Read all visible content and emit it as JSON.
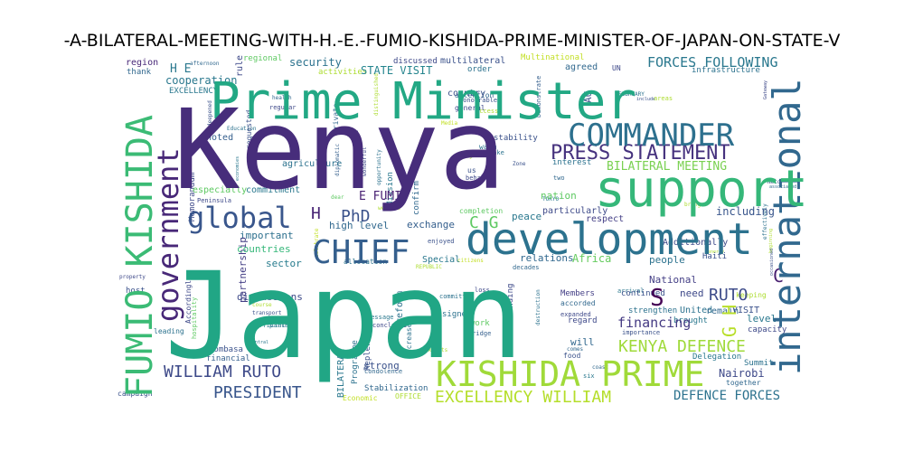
{
  "chart_data": {
    "type": "wordcloud",
    "title": "-A-BILATERAL-MEETING-WITH-H.-E.-FUMIO-KISHIDA-PRIME-MINISTER-OF-JAPAN-ON-STATE-V",
    "background": "#ffffff",
    "palette": [
      "#440154",
      "#472d7b",
      "#3b528b",
      "#2c728e",
      "#21918c",
      "#28ae80",
      "#5ec962",
      "#addc30",
      "#fde725"
    ],
    "words": [
      {
        "text": "Kenya",
        "weight": 100,
        "color": "#472d7b"
      },
      {
        "text": "Japan",
        "weight": 98,
        "color": "#21a685"
      },
      {
        "text": "Prime Minister",
        "weight": 55,
        "color": "#22a884"
      },
      {
        "text": "support",
        "weight": 50,
        "color": "#35b779"
      },
      {
        "text": "development",
        "weight": 45,
        "color": "#2c728e"
      },
      {
        "text": "international",
        "weight": 40,
        "color": "#31688e"
      },
      {
        "text": "KISHIDA PRIME",
        "weight": 40,
        "color": "#a0da39"
      },
      {
        "text": "FUMIO KISHIDA",
        "weight": 40,
        "color": "#3bbb75"
      },
      {
        "text": "COMMANDER",
        "weight": 34,
        "color": "#2d708e"
      },
      {
        "text": "government",
        "weight": 34,
        "color": "#482878"
      },
      {
        "text": "CHIEF",
        "weight": 32,
        "color": "#355f8d"
      },
      {
        "text": "global",
        "weight": 30,
        "color": "#39568c"
      },
      {
        "text": "PRESS STATEMENT",
        "weight": 22,
        "color": "#46327e"
      },
      {
        "text": "EXCELLENCY WILLIAM",
        "weight": 18,
        "color": "#b5de2b"
      },
      {
        "text": "KENYA DEFENCE",
        "weight": 18,
        "color": "#9fda3a"
      },
      {
        "text": "WILLIAM RUTO",
        "weight": 17,
        "color": "#3e4a89"
      },
      {
        "text": "PRESIDENT",
        "weight": 17,
        "color": "#39568c"
      },
      {
        "text": "FORCES FOLLOWING",
        "weight": 15,
        "color": "#2a788e"
      },
      {
        "text": "DEFENCE FORCES",
        "weight": 14,
        "color": "#2c728e"
      },
      {
        "text": "BILATERAL MEETING",
        "weight": 13,
        "color": "#7ad151"
      },
      {
        "text": "STATE VISIT",
        "weight": 12,
        "color": "#25858e"
      },
      {
        "text": "financing",
        "weight": 14,
        "color": "#443a83"
      },
      {
        "text": "RUTO",
        "weight": 16,
        "color": "#3e4c8a"
      },
      {
        "text": "PhD",
        "weight": 16,
        "color": "#3b528b"
      },
      {
        "text": "H",
        "weight": 18,
        "color": "#482475"
      },
      {
        "text": "C G",
        "weight": 16,
        "color": "#5ec962"
      },
      {
        "text": "G H",
        "weight": 18,
        "color": "#b8de29"
      },
      {
        "text": "E FUMIO",
        "weight": 12,
        "color": "#482173"
      },
      {
        "text": "H E",
        "weight": 12,
        "color": "#2a788e"
      },
      {
        "text": "S",
        "weight": 22,
        "color": "#440154"
      },
      {
        "text": "C",
        "weight": 18,
        "color": "#481f70"
      },
      {
        "text": "cooperation",
        "weight": 11,
        "color": "#2a788e"
      },
      {
        "text": "including",
        "weight": 11,
        "color": "#39568c"
      },
      {
        "text": "Africa",
        "weight": 11,
        "color": "#65cb5e"
      },
      {
        "text": "Nairobi",
        "weight": 10,
        "color": "#3e4989"
      },
      {
        "text": "security",
        "weight": 10,
        "color": "#2c728e"
      },
      {
        "text": "exchange",
        "weight": 9,
        "color": "#355f8d"
      },
      {
        "text": "high level",
        "weight": 9,
        "color": "#31688e"
      },
      {
        "text": "countries",
        "weight": 9,
        "color": "#35b779"
      },
      {
        "text": "important",
        "weight": 8,
        "color": "#2d708e"
      },
      {
        "text": "sector",
        "weight": 9,
        "color": "#287c8e"
      },
      {
        "text": "discussions",
        "weight": 9,
        "color": "#3e4a89"
      },
      {
        "text": "partnership",
        "weight": 8,
        "color": "#433e85"
      },
      {
        "text": "peace",
        "weight": 9,
        "color": "#2a788e"
      },
      {
        "text": "nation",
        "weight": 9,
        "color": "#5ec962"
      },
      {
        "text": "strong",
        "weight": 9,
        "color": "#3b528b"
      },
      {
        "text": "reform",
        "weight": 8,
        "color": "#2c728e"
      },
      {
        "text": "relations",
        "weight": 8,
        "color": "#31688e"
      },
      {
        "text": "Special",
        "weight": 8,
        "color": "#2a788e"
      },
      {
        "text": "need",
        "weight": 9,
        "color": "#3e4989"
      },
      {
        "text": "National",
        "weight": 9,
        "color": "#433e85"
      },
      {
        "text": "people",
        "weight": 8,
        "color": "#2c728e"
      },
      {
        "text": "will",
        "weight": 9,
        "color": "#31688e"
      },
      {
        "text": "level",
        "weight": 9,
        "color": "#2a788e"
      },
      {
        "text": "VISIT",
        "weight": 8,
        "color": "#3b528b"
      },
      {
        "text": "respect",
        "weight": 8,
        "color": "#433e85"
      },
      {
        "text": "particularly",
        "weight": 8,
        "color": "#3e4a89"
      },
      {
        "text": "agreed",
        "weight": 8,
        "color": "#31688e"
      },
      {
        "text": "order",
        "weight": 7,
        "color": "#2c728e"
      },
      {
        "text": "multilateral",
        "weight": 7,
        "color": "#3b528b"
      },
      {
        "text": "discussed",
        "weight": 7,
        "color": "#3e4989"
      },
      {
        "text": "infrastructure",
        "weight": 7,
        "color": "#2c728e"
      },
      {
        "text": "EXCELLENCY",
        "weight": 6,
        "color": "#2a788e"
      },
      {
        "text": "region",
        "weight": 6,
        "color": "#482878"
      },
      {
        "text": "thank",
        "weight": 6,
        "color": "#31688e"
      },
      {
        "text": "regional",
        "weight": 6,
        "color": "#5ec962"
      },
      {
        "text": "activities",
        "weight": 6,
        "color": "#addc30"
      },
      {
        "text": "Multinational",
        "weight": 6,
        "color": "#c2df23"
      },
      {
        "text": "country",
        "weight": 7,
        "color": "#3b528b"
      },
      {
        "text": "noted",
        "weight": 7,
        "color": "#355f8d"
      },
      {
        "text": "agriculture",
        "weight": 7,
        "color": "#2c728e"
      },
      {
        "text": "especially",
        "weight": 7,
        "color": "#5ec962"
      },
      {
        "text": "commitment",
        "weight": 7,
        "color": "#2a788e"
      },
      {
        "text": "Memorandum",
        "weight": 6,
        "color": "#3e4989"
      },
      {
        "text": "stability",
        "weight": 6,
        "color": "#3b528b"
      },
      {
        "text": "interest",
        "weight": 6,
        "color": "#2c728e"
      },
      {
        "text": "Mission",
        "weight": 6,
        "color": "#2a788e"
      },
      {
        "text": "confirm",
        "weight": 6,
        "color": "#31688e"
      },
      {
        "text": "Additionally",
        "weight": 7,
        "color": "#3e4a89"
      },
      {
        "text": "United",
        "weight": 7,
        "color": "#2c728e"
      },
      {
        "text": "continued",
        "weight": 6,
        "color": "#3b528b"
      },
      {
        "text": "remain",
        "weight": 7,
        "color": "#31688e"
      },
      {
        "text": "brought",
        "weight": 6,
        "color": "#2a788e"
      },
      {
        "text": "strengthen",
        "weight": 6,
        "color": "#2c728e"
      },
      {
        "text": "capacity",
        "weight": 6,
        "color": "#3e4989"
      },
      {
        "text": "Members",
        "weight": 6,
        "color": "#433e85"
      },
      {
        "text": "signed",
        "weight": 6,
        "color": "#2c728e"
      },
      {
        "text": "Replenishment",
        "weight": 6,
        "color": "#3b528b"
      },
      {
        "text": "Programme",
        "weight": 6,
        "color": "#2c728e"
      },
      {
        "text": "BILATERAL",
        "weight": 7,
        "color": "#2a788e"
      },
      {
        "text": "Understanding",
        "weight": 6,
        "color": "#3e4a89"
      },
      {
        "text": "Stabilization",
        "weight": 6,
        "color": "#31688e"
      },
      {
        "text": "Mombasa",
        "weight": 6,
        "color": "#3b528b"
      },
      {
        "text": "financial",
        "weight": 6,
        "color": "#355f8d"
      },
      {
        "text": "Delegation",
        "weight": 6,
        "color": "#2a788e"
      },
      {
        "text": "Summit",
        "weight": 6,
        "color": "#2c728e"
      },
      {
        "text": "Haiti",
        "weight": 6,
        "color": "#3b528b"
      },
      {
        "text": "together",
        "weight": 5,
        "color": "#31688e"
      },
      {
        "text": "Accordingly",
        "weight": 5,
        "color": "#3e4989"
      },
      {
        "text": "host",
        "weight": 5,
        "color": "#3b528b"
      },
      {
        "text": "Economic",
        "weight": 5,
        "color": "#c2df23"
      },
      {
        "text": "OFFICE",
        "weight": 5,
        "color": "#addc30"
      },
      {
        "text": "campaign",
        "weight": 5,
        "color": "#3b528b"
      },
      {
        "text": "work",
        "weight": 6,
        "color": "#5ec962"
      },
      {
        "text": "year",
        "weight": 6,
        "color": "#addc30"
      },
      {
        "text": "rule",
        "weight": 6,
        "color": "#3e4989"
      },
      {
        "text": "requested",
        "weight": 5,
        "color": "#3b528b"
      },
      {
        "text": "Private",
        "weight": 5,
        "color": "#31688e"
      },
      {
        "text": "Officials",
        "weight": 4,
        "color": "#2a788e"
      },
      {
        "text": "Honourable",
        "weight": 4,
        "color": "#3b528b"
      },
      {
        "text": "Demonstrate",
        "weight": 4,
        "color": "#355f8d"
      },
      {
        "text": "general",
        "weight": 5,
        "color": "#3e4989"
      },
      {
        "text": "attention",
        "weight": 5,
        "color": "#31688e"
      },
      {
        "text": "access",
        "weight": 5,
        "color": "#addc30"
      },
      {
        "text": "warm",
        "weight": 5,
        "color": "#2c728e"
      },
      {
        "text": "completion",
        "weight": 5,
        "color": "#5ec962"
      },
      {
        "text": "hospitality",
        "weight": 4,
        "color": "#5ec962"
      },
      {
        "text": "leading",
        "weight": 5,
        "color": "#2c728e"
      },
      {
        "text": "accorded",
        "weight": 5,
        "color": "#31688e"
      },
      {
        "text": "expanded",
        "weight": 4,
        "color": "#3e4989"
      },
      {
        "text": "arrival",
        "weight": 4,
        "color": "#2a788e"
      },
      {
        "text": "keeping",
        "weight": 5,
        "color": "#addc30"
      },
      {
        "text": "food",
        "weight": 5,
        "color": "#3b528b"
      },
      {
        "text": "regard",
        "weight": 6,
        "color": "#3e4989"
      },
      {
        "text": "increased",
        "weight": 5,
        "color": "#2c728e"
      },
      {
        "text": "message",
        "weight": 4,
        "color": "#2a788e"
      },
      {
        "text": "condolence",
        "weight": 4,
        "color": "#31688e"
      },
      {
        "text": "enjoyed",
        "weight": 4,
        "color": "#3b528b"
      },
      {
        "text": "committed",
        "weight": 4,
        "color": "#2c728e"
      },
      {
        "text": "concluded",
        "weight": 4,
        "color": "#3e4989"
      },
      {
        "text": "Bridge",
        "weight": 4,
        "color": "#355f8d"
      },
      {
        "text": "decades",
        "weight": 4,
        "color": "#31688e"
      },
      {
        "text": "allocation",
        "weight": 5,
        "color": "#2c728e"
      },
      {
        "text": "partner",
        "weight": 4,
        "color": "#2a788e"
      },
      {
        "text": "transport",
        "weight": 4,
        "color": "#3b528b"
      },
      {
        "text": "regular",
        "weight": 4,
        "color": "#3e4989"
      },
      {
        "text": "health",
        "weight": 3,
        "color": "#31688e"
      },
      {
        "text": "AU",
        "weight": 7,
        "color": "#3b528b"
      },
      {
        "text": "UN",
        "weight": 4,
        "color": "#3e4989"
      },
      {
        "text": "FEBRUARY",
        "weight": 3,
        "color": "#2c728e"
      },
      {
        "text": "areas",
        "weight": 4,
        "color": "#addc30"
      },
      {
        "text": "TOKYO",
        "weight": 4,
        "color": "#2a788e"
      },
      {
        "text": "Zone",
        "weight": 3,
        "color": "#3b528b"
      },
      {
        "text": "Media",
        "weight": 3,
        "color": "#c2df23"
      },
      {
        "text": "Peninsula",
        "weight": 4,
        "color": "#3e4989"
      },
      {
        "text": "Education",
        "weight": 3,
        "color": "#2c728e"
      },
      {
        "text": "afternoon",
        "weight": 3,
        "color": "#31688e"
      },
      {
        "text": "economies",
        "weight": 3,
        "color": "#2a788e"
      },
      {
        "text": "earthquake",
        "weight": 3,
        "color": "#3b528b"
      },
      {
        "text": "wonderful",
        "weight": 3,
        "color": "#3e4989"
      },
      {
        "text": "opportunity",
        "weight": 3,
        "color": "#2c728e"
      },
      {
        "text": "diplomatic",
        "weight": 3,
        "color": "#355f8d"
      },
      {
        "text": "distinguished",
        "weight": 3,
        "color": "#addc30"
      },
      {
        "text": "deepened",
        "weight": 3,
        "color": "#3b528b"
      },
      {
        "text": "dear",
        "weight": 3,
        "color": "#5ec962"
      },
      {
        "text": "welcome",
        "weight": 3,
        "color": "#addc30"
      },
      {
        "text": "celebrate",
        "weight": 3,
        "color": "#c2df23"
      },
      {
        "text": "REPUBLIC",
        "weight": 3,
        "color": "#addc30"
      },
      {
        "text": "citizens",
        "weight": 3,
        "color": "#c2df23"
      },
      {
        "text": "property",
        "weight": 3,
        "color": "#3e4989"
      },
      {
        "text": "energy",
        "weight": 3,
        "color": "#addc30"
      },
      {
        "text": "bring",
        "weight": 3,
        "color": "#addc30"
      },
      {
        "text": "Noto",
        "weight": 3,
        "color": "#3b528b"
      },
      {
        "text": "associated",
        "weight": 3,
        "color": "#31688e"
      },
      {
        "text": "beginning",
        "weight": 3,
        "color": "#addc30"
      },
      {
        "text": "occasioned",
        "weight": 3,
        "color": "#3b528b"
      },
      {
        "text": "effectively",
        "weight": 3,
        "color": "#2c728e"
      },
      {
        "text": "Gateway",
        "weight": 3,
        "color": "#3e4989"
      },
      {
        "text": "include",
        "weight": 3,
        "color": "#3b528b"
      },
      {
        "text": "coast",
        "weight": 3,
        "color": "#31688e"
      },
      {
        "text": "six",
        "weight": 4,
        "color": "#2a788e"
      },
      {
        "text": "exports",
        "weight": 3,
        "color": "#addc30"
      },
      {
        "text": "loss",
        "weight": 4,
        "color": "#3e4989"
      },
      {
        "text": "destruction",
        "weight": 3,
        "color": "#2c728e"
      },
      {
        "text": "importance",
        "weight": 4,
        "color": "#3b528b"
      },
      {
        "text": "comes",
        "weight": 3,
        "color": "#31688e"
      },
      {
        "text": "course",
        "weight": 3,
        "color": "#addc30"
      },
      {
        "text": "Central",
        "weight": 3,
        "color": "#2a788e"
      },
      {
        "text": "behalf",
        "weight": 4,
        "color": "#3e4989"
      },
      {
        "text": "take",
        "weight": 4,
        "color": "#2c728e"
      },
      {
        "text": "us",
        "weight": 5,
        "color": "#3b528b"
      },
      {
        "text": "two",
        "weight": 4,
        "color": "#31688e"
      }
    ]
  }
}
